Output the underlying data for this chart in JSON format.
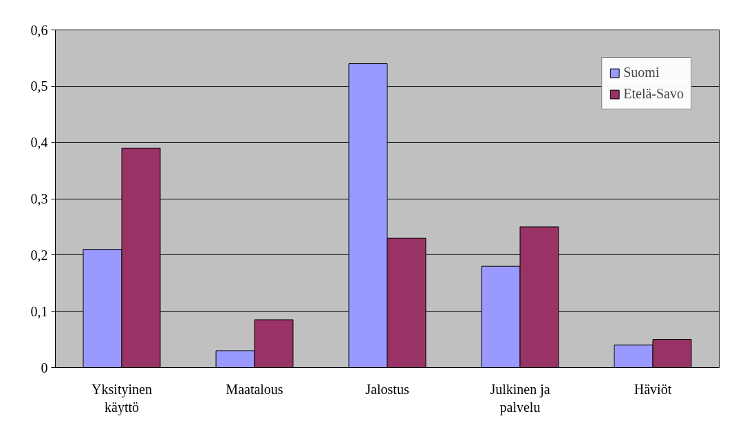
{
  "chart_data": {
    "type": "bar",
    "categories": [
      "Yksityinen käyttö",
      "Maatalous",
      "Jalostus",
      "Julkinen ja palvelu",
      "Häviöt"
    ],
    "series": [
      {
        "name": "Suomi",
        "color": "#9999ff",
        "values": [
          0.21,
          0.03,
          0.54,
          0.18,
          0.04
        ]
      },
      {
        "name": "Etelä-Savo",
        "color": "#993366",
        "values": [
          0.39,
          0.085,
          0.23,
          0.25,
          0.05
        ]
      }
    ],
    "ylim": [
      0,
      0.6
    ],
    "yticks": [
      0,
      {
        "value": 0.1,
        "label": "0,1"
      },
      {
        "value": 0.2,
        "label": "0,2"
      },
      {
        "value": 0.3,
        "label": "0,3"
      },
      {
        "value": 0.4,
        "label": "0,4"
      },
      {
        "value": 0.5,
        "label": "0,5"
      },
      {
        "value": 0.6,
        "label": "0,6"
      }
    ],
    "grid": "y",
    "legend": "top right"
  }
}
